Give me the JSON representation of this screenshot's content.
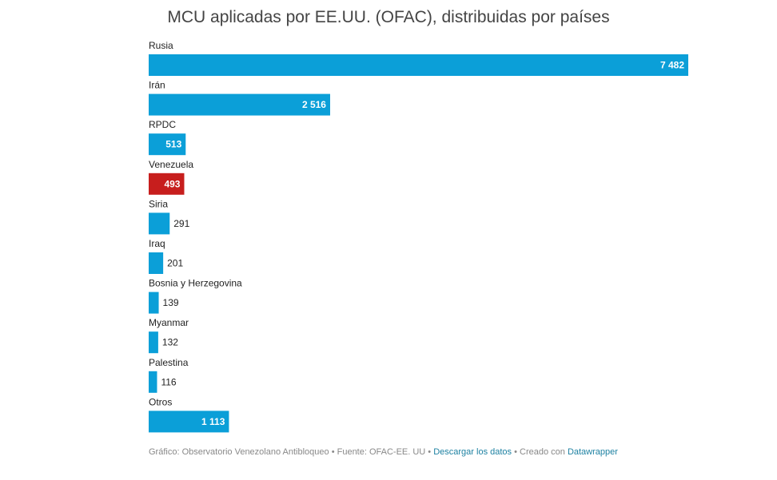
{
  "chart_data": {
    "type": "bar",
    "orientation": "horizontal",
    "title": "MCU aplicadas por EE.UU. (OFAC), distribuidas por países",
    "categories": [
      "Rusia",
      "Irán",
      "RPDC",
      "Venezuela",
      "Siria",
      "Iraq",
      "Bosnia y Herzegovina",
      "Myanmar",
      "Palestina",
      "Otros"
    ],
    "values": [
      7482,
      2516,
      513,
      493,
      291,
      201,
      139,
      132,
      116,
      1113
    ],
    "value_labels": [
      "7 482",
      "2 516",
      "513",
      "493",
      "291",
      "201",
      "139",
      "132",
      "116",
      "1 113"
    ],
    "colors": [
      "#0b9fd8",
      "#0b9fd8",
      "#0b9fd8",
      "#c71e1d",
      "#0b9fd8",
      "#0b9fd8",
      "#0b9fd8",
      "#0b9fd8",
      "#0b9fd8",
      "#0b9fd8"
    ],
    "xlim": [
      0,
      7482
    ],
    "grid": false,
    "legend": "none"
  },
  "footer": {
    "source_text": "Gráfico: Observatorio Venezolano Antibloqueo • Fuente: OFAC-EE. UU  • ",
    "download_link": "Descargar los datos",
    "created_text": " • Creado con ",
    "datawrapper_link": "Datawrapper"
  }
}
